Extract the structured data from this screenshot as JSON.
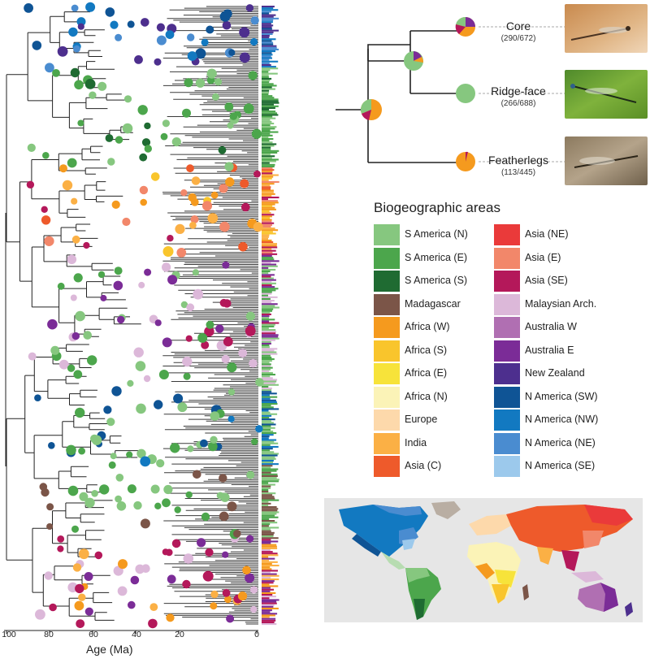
{
  "axis": {
    "label": "Age (Ma)",
    "ticks": [
      "100",
      "80",
      "60",
      "40",
      "20",
      "0"
    ]
  },
  "clades": [
    {
      "name": "Core",
      "count": "(290/672)"
    },
    {
      "name": "Ridge-face",
      "count": "(266/688)"
    },
    {
      "name": "Featherlegs",
      "count": "(113/445)"
    }
  ],
  "legend": {
    "title": "Biogeographic areas",
    "left": [
      {
        "label": "S America (N)",
        "color": "#86c77f"
      },
      {
        "label": "S America (E)",
        "color": "#4ca64c"
      },
      {
        "label": "S America (S)",
        "color": "#1f6b32"
      },
      {
        "label": "Madagascar",
        "color": "#7b5548"
      },
      {
        "label": "Africa (W)",
        "color": "#f59a1e"
      },
      {
        "label": "Africa (S)",
        "color": "#f9c52c"
      },
      {
        "label": "Africa (E)",
        "color": "#f7e33a"
      },
      {
        "label": "Africa (N)",
        "color": "#fbf3b7"
      },
      {
        "label": "Europe",
        "color": "#fdd9ab"
      },
      {
        "label": "India",
        "color": "#fbb045"
      },
      {
        "label": "Asia (C)",
        "color": "#ee5a2b"
      }
    ],
    "right": [
      {
        "label": "Asia (NE)",
        "color": "#ea3a3a"
      },
      {
        "label": "Asia (E)",
        "color": "#f2876a"
      },
      {
        "label": "Asia (SE)",
        "color": "#b4185a"
      },
      {
        "label": "Malaysian Arch.",
        "color": "#dcb8d9"
      },
      {
        "label": "Australia W",
        "color": "#b06fb2"
      },
      {
        "label": "Australia E",
        "color": "#7b2c97"
      },
      {
        "label": "New Zealand",
        "color": "#4d2f8e"
      },
      {
        "label": "N America (SW)",
        "color": "#0f5495"
      },
      {
        "label": "N America (NW)",
        "color": "#1279c1"
      },
      {
        "label": "N America (NE)",
        "color": "#4a8cd0"
      },
      {
        "label": "N America (SE)",
        "color": "#9cc9ec"
      }
    ]
  }
}
